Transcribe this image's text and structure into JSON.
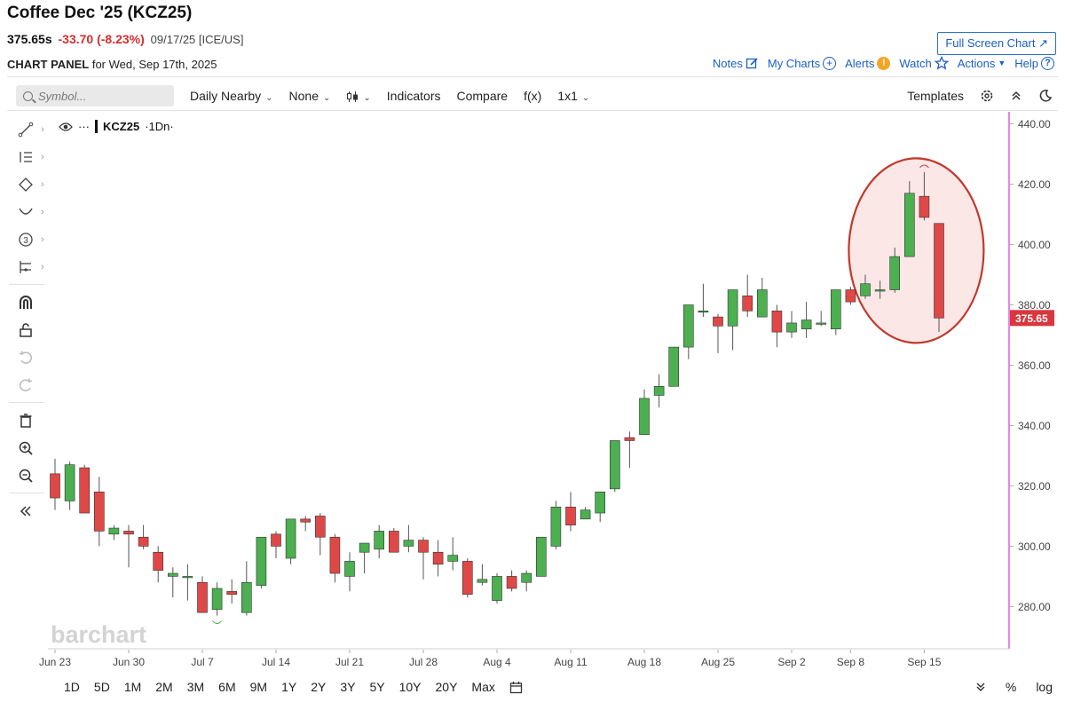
{
  "header": {
    "title": "Coffee Dec '25 (KCZ25)",
    "price": "375.65s",
    "change": "-33.70 (-8.23%)",
    "date_exchange": "09/17/25 [ICE/US]",
    "fullscreen_label": "Full Screen Chart",
    "panel_prefix": "CHART PANEL",
    "panel_suffix": "for Wed, Sep 17th, 2025"
  },
  "links": {
    "notes": "Notes",
    "my_charts": "My Charts",
    "alerts": "Alerts",
    "watch": "Watch",
    "actions": "Actions",
    "help": "Help"
  },
  "toolbar": {
    "search_placeholder": "Symbol...",
    "interval": "Daily Nearby",
    "overlay": "None",
    "indicators": "Indicators",
    "compare": "Compare",
    "fx": "f(x)",
    "layout": "1x1",
    "templates": "Templates"
  },
  "pane": {
    "symbol": "KCZ25",
    "interval_tag": "·1Dn·",
    "dots": "···"
  },
  "watermark": "barchart",
  "last_price_label": "375.65",
  "colors": {
    "up": "#4caf50",
    "down": "#e04848",
    "price_tag": "#d9363e",
    "axis_line": "#d633d6",
    "highlight_stroke": "#c0392b",
    "highlight_fill": "#fbe3e3"
  },
  "chart_data": {
    "type": "candlestick",
    "y_ticks": [
      280,
      300,
      320,
      340,
      360,
      380,
      400,
      420,
      440
    ],
    "y_tick_labels": [
      "280.00",
      "300.00",
      "320.00",
      "340.00",
      "360.00",
      "380.00",
      "400.00",
      "420.00",
      "440.00"
    ],
    "ylim": [
      266,
      444
    ],
    "x_labels": [
      "Jun 23",
      "Jun 30",
      "Jul 7",
      "Jul 14",
      "Jul 21",
      "Jul 28",
      "Aug 4",
      "Aug 11",
      "Aug 18",
      "Aug 25",
      "Sep 2",
      "Sep 8",
      "Sep 15"
    ],
    "x_label_index": [
      0,
      5,
      10,
      15,
      20,
      25,
      30,
      35,
      40,
      45,
      50,
      54,
      59
    ],
    "candles": [
      {
        "o": 324,
        "h": 329,
        "l": 312,
        "c": 316
      },
      {
        "o": 315,
        "h": 328,
        "l": 312,
        "c": 327
      },
      {
        "o": 326,
        "h": 327,
        "l": 311,
        "c": 311
      },
      {
        "o": 318,
        "h": 323,
        "l": 300,
        "c": 305
      },
      {
        "o": 304,
        "h": 307,
        "l": 302,
        "c": 306
      },
      {
        "o": 305,
        "h": 307,
        "l": 293,
        "c": 304
      },
      {
        "o": 303,
        "h": 307,
        "l": 299,
        "c": 300
      },
      {
        "o": 298,
        "h": 300,
        "l": 288,
        "c": 292
      },
      {
        "o": 290,
        "h": 293,
        "l": 283,
        "c": 291
      },
      {
        "o": 290,
        "h": 294,
        "l": 282,
        "c": 290
      },
      {
        "o": 288,
        "h": 290,
        "l": 278,
        "c": 278
      },
      {
        "o": 279,
        "h": 288,
        "l": 277,
        "c": 286
      },
      {
        "o": 285,
        "h": 289,
        "l": 281,
        "c": 284
      },
      {
        "o": 278,
        "h": 295,
        "l": 277,
        "c": 288
      },
      {
        "o": 287,
        "h": 302,
        "l": 286,
        "c": 303
      },
      {
        "o": 304,
        "h": 305,
        "l": 296,
        "c": 300
      },
      {
        "o": 296,
        "h": 309,
        "l": 294,
        "c": 309
      },
      {
        "o": 309,
        "h": 310,
        "l": 305,
        "c": 308
      },
      {
        "o": 310,
        "h": 311,
        "l": 297,
        "c": 303
      },
      {
        "o": 303,
        "h": 304,
        "l": 288,
        "c": 291
      },
      {
        "o": 290,
        "h": 298,
        "l": 285,
        "c": 295
      },
      {
        "o": 298,
        "h": 301,
        "l": 291,
        "c": 301
      },
      {
        "o": 299,
        "h": 307,
        "l": 296,
        "c": 305
      },
      {
        "o": 305,
        "h": 306,
        "l": 299,
        "c": 298
      },
      {
        "o": 300,
        "h": 307,
        "l": 298,
        "c": 302
      },
      {
        "o": 302,
        "h": 303,
        "l": 289,
        "c": 298
      },
      {
        "o": 298,
        "h": 302,
        "l": 290,
        "c": 294
      },
      {
        "o": 295,
        "h": 303,
        "l": 292,
        "c": 297
      },
      {
        "o": 295,
        "h": 296,
        "l": 283,
        "c": 284
      },
      {
        "o": 288,
        "h": 294,
        "l": 287,
        "c": 289
      },
      {
        "o": 282,
        "h": 291,
        "l": 281,
        "c": 290
      },
      {
        "o": 290,
        "h": 292,
        "l": 285,
        "c": 286
      },
      {
        "o": 288,
        "h": 292,
        "l": 285,
        "c": 291
      },
      {
        "o": 290,
        "h": 303,
        "l": 290,
        "c": 303
      },
      {
        "o": 300,
        "h": 315,
        "l": 299,
        "c": 313
      },
      {
        "o": 313,
        "h": 318,
        "l": 305,
        "c": 307
      },
      {
        "o": 309,
        "h": 313,
        "l": 309,
        "c": 312
      },
      {
        "o": 311,
        "h": 318,
        "l": 308,
        "c": 318
      },
      {
        "o": 319,
        "h": 335,
        "l": 318,
        "c": 335
      },
      {
        "o": 336,
        "h": 338,
        "l": 326,
        "c": 335
      },
      {
        "o": 337,
        "h": 352,
        "l": 337,
        "c": 349
      },
      {
        "o": 350,
        "h": 357,
        "l": 346,
        "c": 353
      },
      {
        "o": 353,
        "h": 366,
        "l": 353,
        "c": 366
      },
      {
        "o": 366,
        "h": 380,
        "l": 362,
        "c": 380
      },
      {
        "o": 378,
        "h": 387,
        "l": 376,
        "c": 378
      },
      {
        "o": 376,
        "h": 377,
        "l": 364,
        "c": 373
      },
      {
        "o": 373,
        "h": 385,
        "l": 365,
        "c": 385
      },
      {
        "o": 383,
        "h": 390,
        "l": 376,
        "c": 378
      },
      {
        "o": 376,
        "h": 389,
        "l": 376,
        "c": 385
      },
      {
        "o": 378,
        "h": 380,
        "l": 366,
        "c": 371
      },
      {
        "o": 371,
        "h": 378,
        "l": 369,
        "c": 374
      },
      {
        "o": 372,
        "h": 381,
        "l": 369,
        "c": 375
      },
      {
        "o": 374,
        "h": 378,
        "l": 373,
        "c": 374
      },
      {
        "o": 372,
        "h": 385,
        "l": 370,
        "c": 385
      },
      {
        "o": 385,
        "h": 386,
        "l": 380,
        "c": 381
      },
      {
        "o": 383,
        "h": 390,
        "l": 382,
        "c": 387
      },
      {
        "o": 385,
        "h": 388,
        "l": 382,
        "c": 385
      },
      {
        "o": 385,
        "h": 399,
        "l": 384,
        "c": 396
      },
      {
        "o": 396,
        "h": 421,
        "l": 396,
        "c": 417
      },
      {
        "o": 416,
        "h": 424,
        "l": 408,
        "c": 409
      },
      {
        "o": 407,
        "h": 407,
        "l": 371,
        "c": 375.65
      }
    ]
  },
  "bottom": {
    "ranges": [
      "1D",
      "5D",
      "1M",
      "2M",
      "3M",
      "6M",
      "9M",
      "1Y",
      "2Y",
      "3Y",
      "5Y",
      "10Y",
      "20Y",
      "Max"
    ],
    "percent": "%",
    "log": "log"
  }
}
